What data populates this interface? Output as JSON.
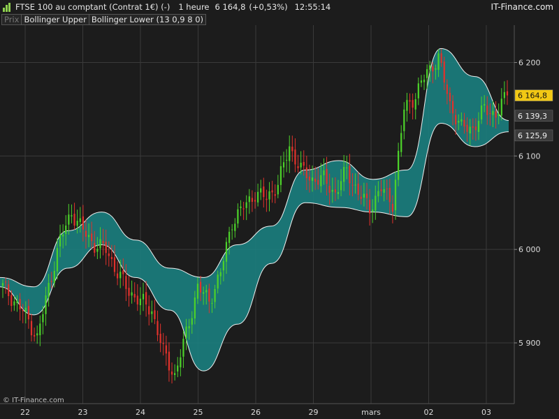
{
  "header": {
    "instrument": "FTSE 100 au comptant (Contrat 1€) (-)",
    "timeframe": "1 heure",
    "last_price": "6 164,8",
    "change": "(+0,53%)",
    "time": "12:55:14",
    "brand": "IT-Finance.com",
    "logo_icon": "bar-chart-icon"
  },
  "tabs": {
    "price": "Prix",
    "indicator_upper": "Bollinger Upper",
    "indicator_lower": "Bollinger Lower (13 0,9 8 0)"
  },
  "price_tags": {
    "last": "6 164,8",
    "upper": "6 139,3",
    "lower": "6 125,9"
  },
  "copyright": "© IT-Finance.com",
  "colors": {
    "background": "#1c1c1c",
    "grid": "#3a3a3a",
    "candle_up": "#4cd12a",
    "candle_down": "#e0322c",
    "band_fill": "#1b7f80",
    "band_line": "#f0f0f0",
    "last_tag": "#f2c814"
  },
  "chart_data": {
    "type": "candlestick",
    "title": "",
    "x_tick_labels": [
      "22",
      "23",
      "24",
      "25",
      "26",
      "29",
      "mars",
      "02",
      "03"
    ],
    "y_tick_labels": [
      "5 900",
      "6 000",
      "6 100",
      "6 200"
    ],
    "y_ticks": [
      5900,
      6000,
      6100,
      6200
    ],
    "ylim": [
      5835,
      6240
    ],
    "grid": true,
    "series": [
      {
        "name": "Prix",
        "approx_close_path": [
          [
            "22",
            5960
          ],
          [
            "22",
            5945
          ],
          [
            "22",
            5930
          ],
          [
            "22",
            5905
          ],
          [
            "22",
            5960
          ],
          [
            "23",
            6010
          ],
          [
            "23",
            6040
          ],
          [
            "23",
            6020
          ],
          [
            "23",
            6005
          ],
          [
            "23",
            6000
          ],
          [
            "24",
            5975
          ],
          [
            "24",
            5955
          ],
          [
            "24",
            5945
          ],
          [
            "24",
            5935
          ],
          [
            "24",
            5890
          ],
          [
            "25",
            5865
          ],
          [
            "25",
            5910
          ],
          [
            "25",
            5960
          ],
          [
            "25",
            5945
          ],
          [
            "25",
            5975
          ],
          [
            "26",
            6030
          ],
          [
            "26",
            6045
          ],
          [
            "26",
            6060
          ],
          [
            "26",
            6055
          ],
          [
            "26",
            6070
          ],
          [
            "29",
            6110
          ],
          [
            "29",
            6085
          ],
          [
            "29",
            6075
          ],
          [
            "29",
            6075
          ],
          [
            "29",
            6060
          ],
          [
            "mars",
            6085
          ],
          [
            "mars",
            6060
          ],
          [
            "mars",
            6045
          ],
          [
            "mars",
            6065
          ],
          [
            "mars",
            6050
          ],
          [
            "02",
            6150
          ],
          [
            "02",
            6165
          ],
          [
            "02",
            6190
          ],
          [
            "02",
            6205
          ],
          [
            "02",
            6155
          ],
          [
            "03",
            6130
          ],
          [
            "03",
            6130
          ],
          [
            "03",
            6150
          ],
          [
            "03",
            6145
          ],
          [
            "03",
            6164.8
          ]
        ],
        "last": 6164.8
      },
      {
        "name": "Bollinger Upper",
        "values": [
          5970,
          5960,
          6020,
          6040,
          6010,
          5980,
          5970,
          6005,
          6025,
          6085,
          6095,
          6075,
          6085,
          6215,
          6185,
          6138
        ]
      },
      {
        "name": "Bollinger Lower",
        "values": [
          5960,
          5930,
          5980,
          6005,
          5970,
          5935,
          5870,
          5920,
          5985,
          6050,
          6045,
          6040,
          6035,
          6135,
          6110,
          6126
        ]
      }
    ],
    "band_upper_label": "6 139,3",
    "band_lower_label": "6 125,9",
    "last_label": "6 164,8"
  }
}
